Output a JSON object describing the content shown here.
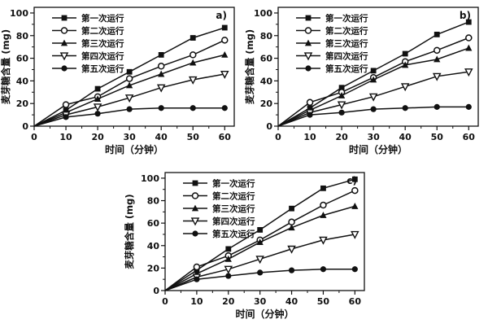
{
  "figure": {
    "background": "#ffffff",
    "line_color": "#111111",
    "text_color": "#111111"
  },
  "chart_data": [
    {
      "type": "line",
      "panel_label": "a)",
      "xlabel": "时间（分钟）",
      "ylabel": "麦芽糖含量 (mg)",
      "xlim": [
        0,
        63
      ],
      "ylim": [
        0,
        105
      ],
      "xticks": [
        0,
        10,
        20,
        30,
        40,
        50,
        60
      ],
      "yticks": [
        0,
        20,
        40,
        60,
        80,
        100
      ],
      "x_minor_step": 5,
      "y_minor_step": 10,
      "grid": false,
      "legend_position": "top-left",
      "x": [
        0,
        10,
        20,
        30,
        40,
        50,
        60
      ],
      "series": [
        {
          "name": "第一次运行",
          "marker": "square-filled",
          "values": [
            0,
            14,
            33,
            48,
            63,
            78,
            87
          ]
        },
        {
          "name": "第二次运行",
          "marker": "circle-open",
          "values": [
            0,
            19,
            26,
            42,
            53,
            63,
            76
          ]
        },
        {
          "name": "第三次运行",
          "marker": "triangle-filled",
          "values": [
            0,
            12,
            24,
            36,
            46,
            56,
            63
          ]
        },
        {
          "name": "第四次运行",
          "marker": "triangle-down-open",
          "values": [
            0,
            10,
            17,
            25,
            34,
            41,
            46
          ]
        },
        {
          "name": "第五次运行",
          "marker": "circle-filled",
          "values": [
            0,
            8,
            11,
            15,
            16,
            16,
            16
          ]
        }
      ]
    },
    {
      "type": "line",
      "panel_label": "b)",
      "xlabel": "时间（分钟）",
      "ylabel": "麦芽糖含量 (mg)",
      "xlim": [
        0,
        63
      ],
      "ylim": [
        0,
        105
      ],
      "xticks": [
        0,
        10,
        20,
        30,
        40,
        50,
        60
      ],
      "yticks": [
        0,
        20,
        40,
        60,
        80,
        100
      ],
      "x_minor_step": 5,
      "y_minor_step": 10,
      "grid": false,
      "legend_position": "top-left",
      "x": [
        0,
        10,
        20,
        30,
        40,
        50,
        60
      ],
      "series": [
        {
          "name": "第一次运行",
          "marker": "square-filled",
          "values": [
            0,
            16,
            34,
            49,
            64,
            81,
            92
          ]
        },
        {
          "name": "第二次运行",
          "marker": "circle-open",
          "values": [
            0,
            21,
            30,
            43,
            57,
            67,
            78
          ]
        },
        {
          "name": "第三次运行",
          "marker": "triangle-filled",
          "values": [
            0,
            14,
            27,
            41,
            54,
            59,
            69
          ]
        },
        {
          "name": "第四次运行",
          "marker": "triangle-down-open",
          "values": [
            0,
            12,
            19,
            26,
            35,
            44,
            48
          ]
        },
        {
          "name": "第五次运行",
          "marker": "circle-filled",
          "values": [
            0,
            10,
            12,
            15,
            16,
            17,
            17
          ]
        }
      ]
    },
    {
      "type": "line",
      "panel_label": "c)",
      "xlabel": "时间（分钟）",
      "ylabel": "麦芽糖含量 (mg)",
      "xlim": [
        0,
        63
      ],
      "ylim": [
        0,
        105
      ],
      "xticks": [
        0,
        10,
        20,
        30,
        40,
        50,
        60
      ],
      "yticks": [
        0,
        20,
        40,
        60,
        80,
        100
      ],
      "x_minor_step": 5,
      "y_minor_step": 10,
      "grid": false,
      "legend_position": "top-left",
      "x": [
        0,
        10,
        20,
        30,
        40,
        50,
        60
      ],
      "series": [
        {
          "name": "第一次运行",
          "marker": "square-filled",
          "values": [
            0,
            18,
            37,
            54,
            73,
            91,
            99
          ]
        },
        {
          "name": "第二次运行",
          "marker": "circle-open",
          "values": [
            0,
            21,
            31,
            45,
            61,
            76,
            89
          ]
        },
        {
          "name": "第三次运行",
          "marker": "triangle-filled",
          "values": [
            0,
            15,
            28,
            43,
            56,
            67,
            75
          ]
        },
        {
          "name": "第四次运行",
          "marker": "triangle-down-open",
          "values": [
            0,
            12,
            19,
            28,
            37,
            45,
            50
          ]
        },
        {
          "name": "第五次运行",
          "marker": "circle-filled",
          "values": [
            0,
            10,
            13,
            16,
            18,
            19,
            19
          ]
        }
      ]
    }
  ]
}
